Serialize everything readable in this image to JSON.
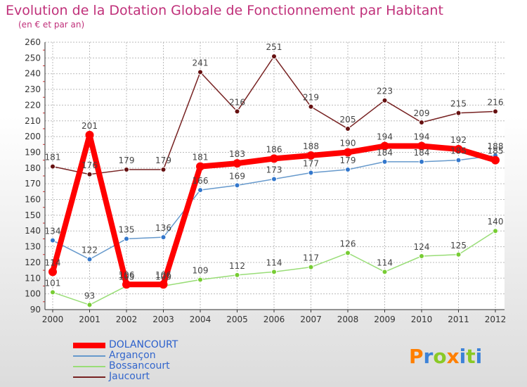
{
  "title": "Evolution de la Dotation Globale de Fonctionnement par Habitant",
  "subtitle": "(en € et par an)",
  "logo_text": "Proxiti",
  "chart_data": {
    "type": "line",
    "title": "Evolution de la Dotation Globale de Fonctionnement par Habitant",
    "subtitle": "(en € et par an)",
    "x": [
      "2000",
      "2001",
      "2002",
      "2003",
      "2004",
      "2005",
      "2006",
      "2007",
      "2008",
      "2009",
      "2010",
      "2011",
      "2012"
    ],
    "ylim": [
      90,
      260
    ],
    "yticks": [
      90,
      100,
      110,
      120,
      130,
      140,
      150,
      160,
      170,
      180,
      190,
      200,
      210,
      220,
      230,
      240,
      250,
      260
    ],
    "grid": true,
    "legend_position": "bottom-left",
    "series": [
      {
        "name": "DOLANCOURT",
        "color": "#ff0000",
        "marker_color": "#ff0000",
        "label_color": "#444444",
        "values": [
          114,
          201,
          106,
          106,
          181,
          183,
          186,
          188,
          190,
          194,
          194,
          192,
          185
        ],
        "labels": [
          "114",
          "201",
          "106",
          "106",
          "181",
          "183",
          "186",
          "188",
          "190",
          "194",
          "194",
          "192",
          "185"
        ]
      },
      {
        "name": "Argançon",
        "color": "#6699cc",
        "marker_color": "#3377cc",
        "label_color": "#444444",
        "values": [
          134,
          122,
          135,
          136,
          166,
          169,
          173,
          177,
          179,
          184,
          184,
          185,
          188
        ],
        "labels": [
          "134",
          "122",
          "135",
          "136",
          "166",
          "169",
          "173",
          "177",
          "179",
          "184",
          "184",
          "185",
          "188"
        ]
      },
      {
        "name": "Bossancourt",
        "color": "#99dd77",
        "marker_color": "#77cc33",
        "label_color": "#444444",
        "values": [
          101,
          93,
          105,
          105,
          109,
          112,
          114,
          117,
          126,
          114,
          124,
          125,
          140
        ],
        "labels": [
          "101",
          "93",
          "105",
          "105",
          "109",
          "112",
          "114",
          "117",
          "126",
          "114",
          "124",
          "125",
          "140"
        ]
      },
      {
        "name": "Jaucourt",
        "color": "#772222",
        "marker_color": "#661111",
        "label_color": "#444444",
        "values": [
          181,
          176,
          179,
          179,
          241,
          216,
          251,
          219,
          205,
          223,
          209,
          215,
          216
        ],
        "labels": [
          "181",
          "176",
          "179",
          "179",
          "241",
          "216",
          "251",
          "219",
          "205",
          "223",
          "209",
          "215",
          "216"
        ]
      }
    ]
  }
}
